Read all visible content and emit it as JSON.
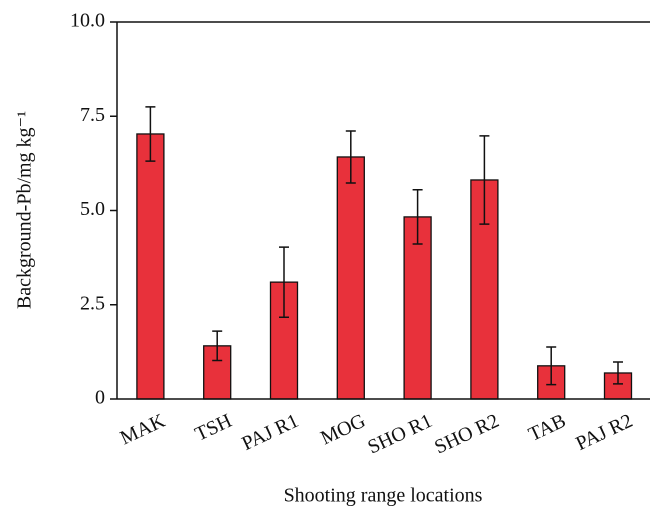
{
  "chart_data": {
    "type": "bar",
    "x_label": "Shooting range locations",
    "y_label": "Background-Pb/mg kg⁻¹",
    "categories": [
      "MAK",
      "TSH",
      "PAJ R1",
      "MOG",
      "SHO R1",
      "SHO R2",
      "TAB",
      "PAJ R2"
    ],
    "values": [
      7.03,
      1.41,
      3.1,
      6.42,
      4.83,
      5.81,
      0.88,
      0.69
    ],
    "errors": [
      0.72,
      0.39,
      0.93,
      0.69,
      0.72,
      1.17,
      0.5,
      0.29
    ],
    "color": "#e8313b",
    "ylim": [
      0,
      10
    ],
    "yticks": [
      0,
      2.5,
      {
        "value": 5,
        "label": "5.0"
      },
      {
        "value": 7.5,
        "label": "7.5"
      },
      {
        "value": 10,
        "label": "10.0"
      }
    ]
  }
}
